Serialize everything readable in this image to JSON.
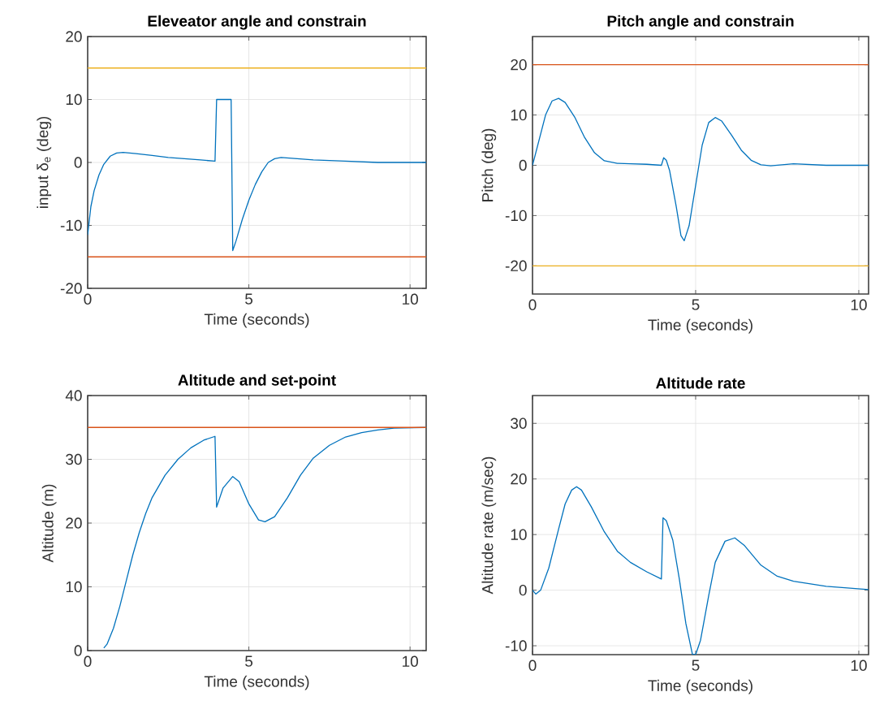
{
  "chart_data": [
    {
      "type": "line",
      "title": "Eleveator angle and constrain",
      "xlabel": "Time (seconds)",
      "ylabel": "input   δ$_{e}$ (deg)",
      "xlim": [
        0,
        10.5
      ],
      "xticks": [
        0,
        5,
        10
      ],
      "ylim": [
        -20,
        20
      ],
      "yticks": [
        -20,
        -10,
        0,
        10,
        20
      ],
      "grid": true,
      "x": [
        0,
        0.1,
        0.2,
        0.35,
        0.5,
        0.7,
        0.9,
        1.1,
        1.5,
        2,
        2.5,
        3,
        3.5,
        3.95,
        4.0,
        4.45,
        4.5,
        4.6,
        4.8,
        5.0,
        5.2,
        5.4,
        5.6,
        5.8,
        6.0,
        6.5,
        7,
        8,
        9,
        10,
        10.5
      ],
      "series": [
        {
          "color": "#0072bd",
          "values": [
            -11.5,
            -7,
            -4.5,
            -2,
            -0.3,
            1,
            1.5,
            1.6,
            1.4,
            1.1,
            0.8,
            0.6,
            0.4,
            0.2,
            10,
            10,
            -14,
            -12.5,
            -9,
            -6,
            -3.5,
            -1.5,
            0,
            0.6,
            0.8,
            0.6,
            0.4,
            0.2,
            0,
            0,
            0
          ]
        }
      ],
      "ref_lines": [
        {
          "axis": "y",
          "value": 15,
          "color": "#edb120"
        },
        {
          "axis": "y",
          "value": -15,
          "color": "#d95319"
        }
      ]
    },
    {
      "type": "line",
      "title": "Pitch angle and constrain",
      "xlabel": "Time (seconds)",
      "ylabel": "Pitch (deg)",
      "xlim": [
        0,
        10.3
      ],
      "xticks": [
        0,
        5,
        10
      ],
      "ylim": [
        -25.6,
        25.6
      ],
      "yticks": [
        -20,
        -10,
        0,
        10,
        20
      ],
      "grid": true,
      "x": [
        0,
        0.2,
        0.4,
        0.6,
        0.8,
        1.0,
        1.3,
        1.6,
        1.9,
        2.2,
        2.6,
        3,
        3.5,
        3.95,
        4.02,
        4.1,
        4.2,
        4.4,
        4.55,
        4.65,
        4.8,
        5.0,
        5.2,
        5.4,
        5.6,
        5.8,
        6.1,
        6.4,
        6.7,
        7.0,
        7.3,
        8,
        9,
        10.3
      ],
      "series": [
        {
          "color": "#0072bd",
          "values": [
            0,
            5,
            10,
            12.8,
            13.3,
            12.5,
            9.5,
            5.5,
            2.5,
            0.9,
            0.4,
            0.3,
            0.2,
            0,
            1.5,
            1,
            -1,
            -8,
            -14,
            -15,
            -12,
            -4,
            4,
            8.5,
            9.5,
            8.8,
            6,
            3,
            1,
            0.1,
            -0.1,
            0.3,
            0,
            0
          ]
        }
      ],
      "ref_lines": [
        {
          "axis": "y",
          "value": 20,
          "color": "#d95319"
        },
        {
          "axis": "y",
          "value": -20,
          "color": "#edb120"
        }
      ]
    },
    {
      "type": "line",
      "title": "Altitude and set-point",
      "xlabel": "Time (seconds)",
      "ylabel": "Altitude (m)",
      "xlim": [
        0,
        10.5
      ],
      "xticks": [
        0,
        5,
        10
      ],
      "ylim": [
        0,
        40
      ],
      "yticks": [
        0,
        10,
        20,
        30,
        40
      ],
      "grid": true,
      "x": [
        0.5,
        0.6,
        0.8,
        1.0,
        1.2,
        1.4,
        1.6,
        1.8,
        2.0,
        2.4,
        2.8,
        3.2,
        3.6,
        3.95,
        4.0,
        4.2,
        4.5,
        4.7,
        5.0,
        5.3,
        5.5,
        5.8,
        6.2,
        6.6,
        7.0,
        7.5,
        8,
        8.5,
        9,
        9.5,
        10.5
      ],
      "series": [
        {
          "color": "#0072bd",
          "values": [
            0.4,
            1,
            3.5,
            7,
            11,
            15,
            18.5,
            21.5,
            24,
            27.5,
            30,
            31.8,
            33,
            33.6,
            22.5,
            25.5,
            27.3,
            26.5,
            23,
            20.5,
            20.2,
            21,
            24,
            27.5,
            30.2,
            32.2,
            33.5,
            34.2,
            34.6,
            34.9,
            35
          ]
        }
      ],
      "ref_lines": [
        {
          "axis": "y",
          "value": 35,
          "color": "#d95319"
        }
      ]
    },
    {
      "type": "line",
      "title": "Altitude rate",
      "xlabel": "Time (seconds)",
      "ylabel": "Altitude rate (m/sec)",
      "xlim": [
        0,
        10.3
      ],
      "xticks": [
        0,
        5,
        10
      ],
      "ylim": [
        -11.6,
        35
      ],
      "yticks": [
        -10,
        0,
        10,
        20,
        30
      ],
      "grid": true,
      "x": [
        0,
        0.1,
        0.25,
        0.5,
        0.8,
        1.0,
        1.2,
        1.35,
        1.5,
        1.8,
        2.2,
        2.6,
        3,
        3.5,
        3.95,
        4.0,
        4.1,
        4.3,
        4.5,
        4.7,
        4.9,
        5.0,
        5.15,
        5.4,
        5.6,
        5.9,
        6.2,
        6.5,
        7,
        7.5,
        8,
        9,
        10.3
      ],
      "series": [
        {
          "color": "#0072bd",
          "values": [
            0,
            -0.7,
            0,
            4,
            11,
            15.5,
            18,
            18.6,
            18,
            15,
            10.5,
            7,
            5,
            3.3,
            2,
            13,
            12.5,
            9,
            2,
            -6,
            -11.5,
            -11.6,
            -9,
            -1,
            5,
            8.8,
            9.4,
            8,
            4.5,
            2.5,
            1.6,
            0.7,
            0.1
          ]
        }
      ]
    }
  ]
}
